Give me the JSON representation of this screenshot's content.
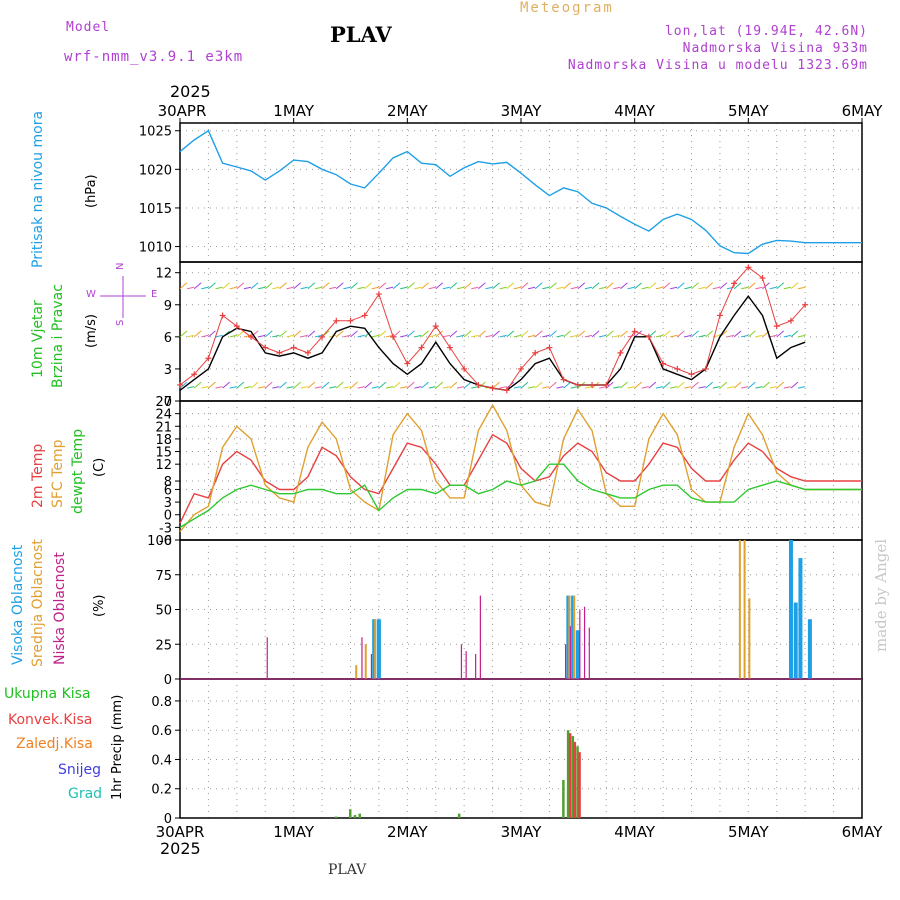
{
  "header": {
    "model_label": "Model",
    "model_name": "wrf-nmm_v3.9.1 e3km",
    "station": "PLAV",
    "title": "Meteogram",
    "coords": "lon,lat (19.94E, 42.6N)",
    "altitude": "Nadmorska Visina 933m",
    "model_altitude": "Nadmorska Visina u modelu 1323.69m",
    "year_top": "2025",
    "year_bottom": "2025",
    "footer_station": "PLAV",
    "watermark": "made by Angel"
  },
  "colors": {
    "pressure": "#1ea0e6",
    "temp2m": "#e84040",
    "sfc": "#e0a030",
    "dewpt": "#30c830",
    "cloud_high": "#1ea0e6",
    "cloud_mid": "#e0a030",
    "cloud_low": "#c0208a",
    "precip_total": "#50a030",
    "precip_conv": "#e84040",
    "precip_frz": "#f08020",
    "snow": "#4040e0",
    "grad": "#20c0b0",
    "wind_speed": "#000000",
    "gust": "#e84040",
    "label_purple": "#b040d0"
  },
  "panel_labels": {
    "pressure": {
      "title": "Pritisak na nivou mora",
      "unit": "(hPa)"
    },
    "wind": {
      "title1": "10m Vjetar",
      "title2": "Brzina i Pravac",
      "unit": "(m/s)",
      "compass_n": "N",
      "compass_s": "S",
      "compass_e": "E",
      "compass_w": "W"
    },
    "temp": {
      "l1": "2m Temp",
      "l2": "SFC Temp",
      "l3": "dewpt Temp",
      "unit": "(C)"
    },
    "cloud": {
      "l1": "Visoka Oblacnost",
      "l2": "Srednja Oblacnost",
      "l3": "Niska Oblacnost",
      "unit": "(%)"
    },
    "precip": {
      "l1": "Ukupna Kisa",
      "l2": "Konvek.Kisa",
      "l3": "Zaledj.Kisa",
      "l4": "Snijeg",
      "l5": "Grad",
      "axis": "1hr Precip (mm)"
    }
  },
  "chart_data": [
    {
      "type": "line",
      "name": "pressure",
      "x_unit": "hours since 30APR 00UTC",
      "categories": [
        "30APR",
        "1MAY",
        "2MAY",
        "3MAY",
        "4MAY",
        "5MAY",
        "6MAY"
      ],
      "ylim": [
        1008,
        1026
      ],
      "yticks": [
        1010,
        1015,
        1020,
        1025
      ],
      "series": [
        {
          "name": "Pritisak na nivou mora",
          "x": [
            0,
            3,
            6,
            9,
            12,
            15,
            18,
            21,
            24,
            27,
            30,
            33,
            36,
            39,
            42,
            45,
            48,
            51,
            54,
            57,
            60,
            63,
            66,
            69,
            72,
            75,
            78,
            81,
            84,
            87,
            90,
            93,
            96,
            99,
            102,
            105,
            108,
            111,
            114,
            117,
            120,
            123,
            126,
            129,
            132,
            135,
            138,
            141,
            144
          ],
          "y": [
            1022.3,
            1023.8,
            1025.0,
            1020.8,
            1020.3,
            1019.8,
            1018.6,
            1019.8,
            1021.2,
            1021.0,
            1020.0,
            1019.3,
            1018.1,
            1017.6,
            1019.5,
            1021.5,
            1022.3,
            1020.8,
            1020.6,
            1019.1,
            1020.2,
            1021.0,
            1020.7,
            1020.9,
            1019.5,
            1018.0,
            1016.6,
            1017.6,
            1017.1,
            1015.6,
            1015.0,
            1013.9,
            1012.9,
            1012.0,
            1013.5,
            1014.2,
            1013.5,
            1012.1,
            1010.1,
            1009.2,
            1009.1,
            1010.3,
            1010.8,
            1010.7,
            1010.5,
            1010.5,
            1010.5,
            1010.5,
            1010.5
          ]
        }
      ]
    },
    {
      "type": "line",
      "name": "wind",
      "ylim": [
        0,
        13
      ],
      "yticks": [
        0,
        3,
        6,
        9,
        12
      ],
      "series": [
        {
          "name": "10m speed",
          "x": [
            0,
            3,
            6,
            9,
            12,
            15,
            18,
            21,
            24,
            27,
            30,
            33,
            36,
            39,
            42,
            45,
            48,
            51,
            54,
            57,
            60,
            63,
            66,
            69,
            72,
            75,
            78,
            81,
            84,
            87,
            90,
            93,
            96,
            99,
            102,
            105,
            108,
            111,
            114,
            117,
            120,
            123,
            126,
            129,
            132
          ],
          "y": [
            1.0,
            2.0,
            3.0,
            6.0,
            6.8,
            6.5,
            4.5,
            4.2,
            4.5,
            4.0,
            4.5,
            6.5,
            7.0,
            6.8,
            5.0,
            3.5,
            2.5,
            3.5,
            5.5,
            3.5,
            2.0,
            1.5,
            1.2,
            1.0,
            2.0,
            3.5,
            4.0,
            2.0,
            1.5,
            1.5,
            1.5,
            3.0,
            6.0,
            6.0,
            3.0,
            2.5,
            2.0,
            3.0,
            6.0,
            8.0,
            9.8,
            8.0,
            4.0,
            5.0,
            5.5
          ]
        },
        {
          "name": "gust",
          "x": [
            0,
            3,
            6,
            9,
            12,
            15,
            18,
            21,
            24,
            27,
            30,
            33,
            36,
            39,
            42,
            45,
            48,
            51,
            54,
            57,
            60,
            63,
            66,
            69,
            72,
            75,
            78,
            81,
            84,
            87,
            90,
            93,
            96,
            99,
            102,
            105,
            108,
            111,
            114,
            117,
            120,
            123,
            126,
            129,
            132
          ],
          "y": [
            1.5,
            2.5,
            4.0,
            8.0,
            7.0,
            6.0,
            5.0,
            4.5,
            5.0,
            4.5,
            6.0,
            7.5,
            7.5,
            8.0,
            10.0,
            6.0,
            3.5,
            5.0,
            7.0,
            5.0,
            3.0,
            1.5,
            1.2,
            1.0,
            3.0,
            4.5,
            5.0,
            2.0,
            1.5,
            1.5,
            1.5,
            4.5,
            6.5,
            6.0,
            3.5,
            3.0,
            2.5,
            3.0,
            8.0,
            11.0,
            12.5,
            11.5,
            7.0,
            7.5,
            9.0
          ]
        }
      ]
    },
    {
      "type": "line",
      "name": "temperature",
      "ylim": [
        -6,
        27
      ],
      "yticks": [
        -6,
        -3,
        0,
        3,
        6,
        8,
        12,
        15,
        18,
        21,
        24,
        27
      ],
      "series": [
        {
          "name": "2m Temp",
          "x": [
            0,
            3,
            6,
            9,
            12,
            15,
            18,
            21,
            24,
            27,
            30,
            33,
            36,
            39,
            42,
            45,
            48,
            51,
            54,
            57,
            60,
            63,
            66,
            69,
            72,
            75,
            78,
            81,
            84,
            87,
            90,
            93,
            96,
            99,
            102,
            105,
            108,
            111,
            114,
            117,
            120,
            123,
            126,
            129,
            132,
            135,
            138,
            141,
            144
          ],
          "y": [
            -2,
            5,
            4,
            12,
            15,
            13,
            8,
            6,
            6,
            9,
            16,
            14,
            9,
            6,
            5,
            11,
            17,
            16,
            12,
            7,
            7,
            13,
            19,
            17,
            11,
            8,
            9,
            14,
            17,
            15,
            10,
            8,
            8,
            12,
            17,
            16,
            11,
            8,
            8,
            13,
            17,
            15,
            11,
            9,
            8,
            8,
            8,
            8,
            8
          ]
        },
        {
          "name": "SFC Temp",
          "x": [
            0,
            3,
            6,
            9,
            12,
            15,
            18,
            21,
            24,
            27,
            30,
            33,
            36,
            39,
            42,
            45,
            48,
            51,
            54,
            57,
            60,
            63,
            66,
            69,
            72,
            75,
            78,
            81,
            84,
            87,
            90,
            93,
            96,
            99,
            102,
            105,
            108,
            111,
            114,
            117,
            120,
            123,
            126,
            129,
            132,
            135,
            138,
            141,
            144
          ],
          "y": [
            -4,
            0,
            2,
            16,
            21,
            18,
            7,
            4,
            3,
            16,
            22,
            18,
            6,
            3,
            1,
            19,
            24,
            20,
            8,
            4,
            4,
            20,
            26,
            20,
            7,
            3,
            2,
            18,
            25,
            20,
            5,
            2,
            2,
            18,
            24,
            19,
            6,
            3,
            3,
            16,
            24,
            19,
            10,
            7,
            6,
            6,
            6,
            6,
            6
          ]
        },
        {
          "name": "dewpt Temp",
          "x": [
            0,
            3,
            6,
            9,
            12,
            15,
            18,
            21,
            24,
            27,
            30,
            33,
            36,
            39,
            42,
            45,
            48,
            51,
            54,
            57,
            60,
            63,
            66,
            69,
            72,
            75,
            78,
            81,
            84,
            87,
            90,
            93,
            96,
            99,
            102,
            105,
            108,
            111,
            114,
            117,
            120,
            123,
            126,
            129,
            132,
            135,
            138,
            141,
            144
          ],
          "y": [
            -3,
            -1,
            1,
            4,
            6,
            7,
            6,
            5,
            5,
            6,
            6,
            5,
            5,
            7,
            1,
            4,
            6,
            6,
            5,
            7,
            7,
            5,
            6,
            8,
            7,
            8,
            12,
            12,
            8,
            6,
            5,
            4,
            4,
            6,
            7,
            7,
            4,
            3,
            3,
            3,
            6,
            7,
            8,
            7,
            6,
            6,
            6,
            6,
            6
          ]
        }
      ]
    },
    {
      "type": "bar",
      "name": "cloud",
      "ylim": [
        0,
        100
      ],
      "yticks": [
        0,
        25,
        50,
        75,
        100
      ],
      "series": [
        {
          "name": "Visoka Oblacnost",
          "x": [
            41,
            42,
            82,
            83,
            84,
            129,
            130,
            131,
            133
          ],
          "values": [
            43,
            43,
            60,
            60,
            35,
            100,
            55,
            87,
            43
          ]
        },
        {
          "name": "Srednja Oblacnost",
          "x": [
            37,
            39,
            41,
            58,
            82,
            83,
            118,
            119,
            120
          ],
          "values": [
            10,
            25,
            43,
            5,
            60,
            60,
            100,
            100,
            58
          ]
        },
        {
          "name": "Niska Oblacnost",
          "x": [
            18,
            36,
            38,
            40,
            59,
            60,
            62,
            63,
            81,
            82,
            84,
            85,
            86
          ],
          "values": [
            30,
            8,
            30,
            18,
            25,
            20,
            18,
            60,
            25,
            38,
            50,
            52,
            37
          ]
        }
      ]
    },
    {
      "type": "bar",
      "name": "precip",
      "ylim": [
        0,
        0.95
      ],
      "yticks": [
        0,
        0.2,
        0.4,
        0.6,
        0.8
      ],
      "series": [
        {
          "name": "Ukupna Kisa",
          "x": [
            33,
            36,
            37,
            38,
            59,
            81,
            82,
            83,
            84
          ],
          "values": [
            0.01,
            0.06,
            0.02,
            0.03,
            0.03,
            0.26,
            0.6,
            0.56,
            0.49
          ]
        },
        {
          "name": "Konvek.Kisa",
          "x": [
            82,
            83,
            84
          ],
          "values": [
            0.58,
            0.52,
            0.45
          ]
        }
      ]
    }
  ]
}
